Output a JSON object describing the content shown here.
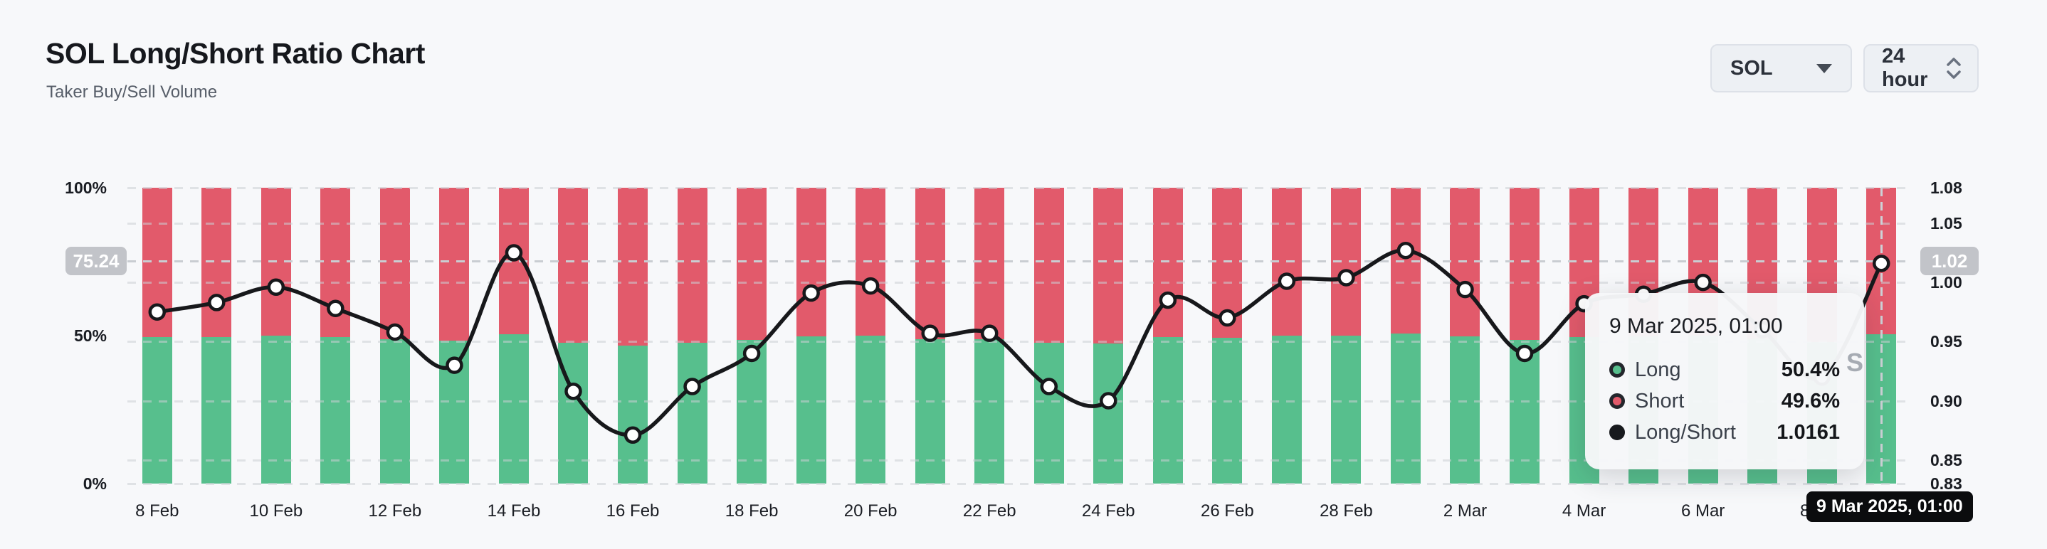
{
  "page": {
    "background": "#f7f8fa"
  },
  "header": {
    "title": "SOL Long/Short Ratio Chart",
    "subtitle": "Taker Buy/Sell Volume"
  },
  "controls": {
    "symbol_dropdown": {
      "value": "SOL"
    },
    "interval_dropdown": {
      "value": "24 hour"
    }
  },
  "colors": {
    "long_green": "#57bf8d",
    "short_red": "#e25a6b",
    "line_black": "#17181b",
    "crosshair_pill_gray": "#c2c4c9",
    "black_pill_bg": "#0b0c0e",
    "tooltip_bg": "#f6f7f9",
    "background": "#f7f8fa"
  },
  "chart_data": {
    "type": "bar",
    "stacked": true,
    "title": "SOL Long/Short Ratio Chart",
    "subtitle": "Taker Buy/Sell Volume",
    "grid": "horizontal-dashed",
    "legend_position": "none",
    "categories": [
      "8 Feb",
      "9 Feb",
      "10 Feb",
      "11 Feb",
      "12 Feb",
      "13 Feb",
      "14 Feb",
      "15 Feb",
      "16 Feb",
      "17 Feb",
      "18 Feb",
      "19 Feb",
      "20 Feb",
      "21 Feb",
      "22 Feb",
      "23 Feb",
      "24 Feb",
      "25 Feb",
      "26 Feb",
      "27 Feb",
      "28 Feb",
      "1 Mar",
      "2 Mar",
      "3 Mar",
      "4 Mar",
      "5 Mar",
      "6 Mar",
      "7 Mar",
      "8 Mar",
      "9 Mar"
    ],
    "series": [
      {
        "name": "Long",
        "type": "bar",
        "unit": "%",
        "color": "#57bf8d",
        "values": [
          49.4,
          49.6,
          49.9,
          49.4,
          48.9,
          48.2,
          50.6,
          47.6,
          46.6,
          47.7,
          48.5,
          49.8,
          49.9,
          48.9,
          48.9,
          47.7,
          47.4,
          49.6,
          49.2,
          50.0,
          50.1,
          50.7,
          49.8,
          48.5,
          49.5,
          49.7,
          50.0,
          49.0,
          47.9,
          50.4
        ]
      },
      {
        "name": "Short",
        "type": "bar",
        "unit": "%",
        "color": "#e25a6b",
        "values": [
          50.6,
          50.4,
          50.1,
          50.6,
          51.1,
          51.8,
          49.4,
          52.4,
          53.4,
          52.3,
          51.5,
          50.2,
          50.1,
          51.1,
          51.1,
          52.3,
          52.6,
          50.4,
          50.8,
          50.0,
          49.9,
          49.3,
          50.2,
          51.5,
          50.5,
          50.3,
          50.0,
          51.0,
          52.1,
          49.6
        ]
      },
      {
        "name": "Long/Short",
        "type": "line",
        "color": "#17181b",
        "values": [
          0.975,
          0.983,
          0.996,
          0.978,
          0.958,
          0.93,
          1.025,
          0.908,
          0.871,
          0.912,
          0.94,
          0.991,
          0.997,
          0.957,
          0.957,
          0.912,
          0.9,
          0.985,
          0.97,
          1.001,
          1.004,
          1.027,
          0.994,
          0.94,
          0.982,
          0.99,
          1.0,
          0.96,
          0.92,
          1.0161
        ]
      }
    ],
    "x_ticks": [
      "8 Feb",
      "10 Feb",
      "12 Feb",
      "14 Feb",
      "16 Feb",
      "18 Feb",
      "20 Feb",
      "22 Feb",
      "24 Feb",
      "26 Feb",
      "28 Feb",
      "2 Mar",
      "4 Mar",
      "6 Mar",
      "8 Mar"
    ],
    "left_axis": {
      "range": [
        0,
        100
      ],
      "ticks": [
        {
          "label": "100%",
          "value": 100
        },
        {
          "label": "50%",
          "value": 50
        },
        {
          "label": "0%",
          "value": 0
        }
      ]
    },
    "right_axis": {
      "range": [
        0.83,
        1.08
      ],
      "ticks": [
        {
          "label": "1.08",
          "value": 1.08
        },
        {
          "label": "1.05",
          "value": 1.05
        },
        {
          "label": "1.00",
          "value": 1.0
        },
        {
          "label": "0.95",
          "value": 0.95
        },
        {
          "label": "0.90",
          "value": 0.9
        },
        {
          "label": "0.85",
          "value": 0.85
        },
        {
          "label": "0.83",
          "value": 0.83
        }
      ]
    },
    "crosshair": {
      "percent_label": "75.24",
      "ratio_label": "1.02",
      "time_label": "9 Mar 2025, 01:00",
      "ratio_value": 1.018,
      "x_index": 29
    }
  },
  "tooltip": {
    "title": "9 Mar 2025, 01:00",
    "rows": [
      {
        "label": "Long",
        "value": "50.4%"
      },
      {
        "label": "Short",
        "value": "49.6%"
      },
      {
        "label": "Long/Short",
        "value": "1.0161"
      }
    ]
  },
  "watermark_fragment": "S"
}
